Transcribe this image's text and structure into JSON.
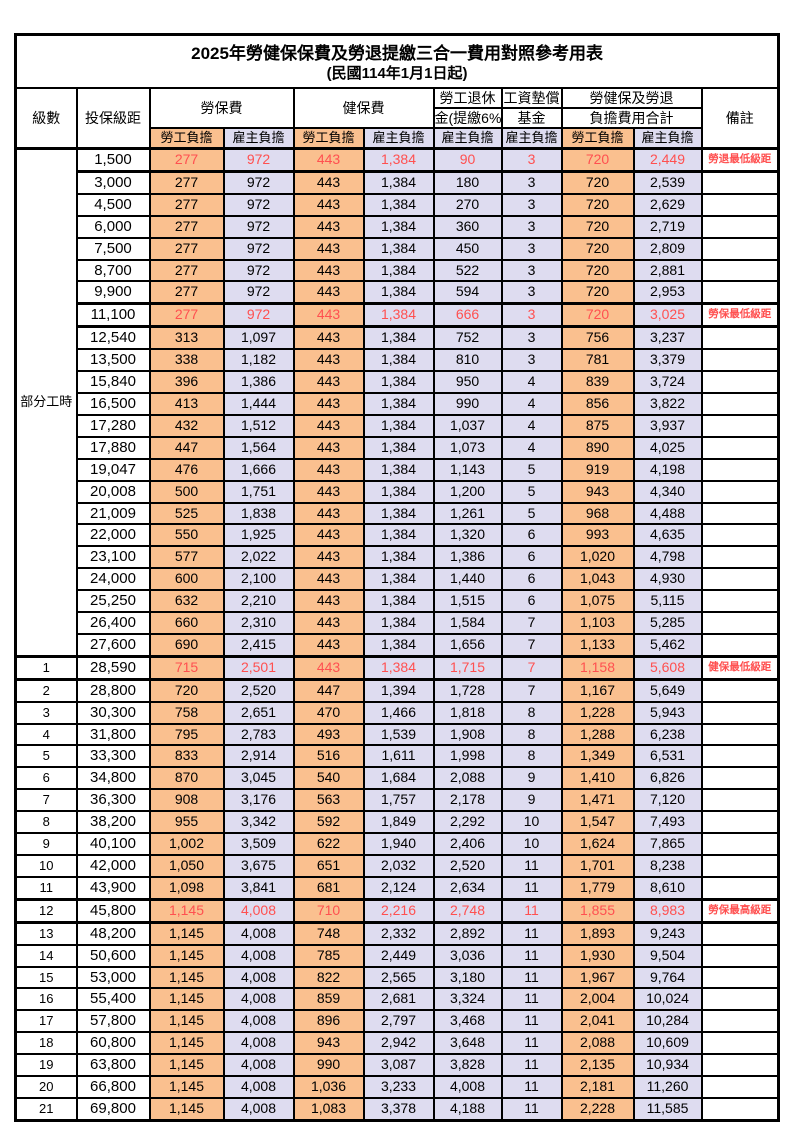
{
  "title": {
    "main": "2025年勞健保保費及勞退提繳三合一費用對照參考用表",
    "subtitle": "(民國114年1月1日起)"
  },
  "header": {
    "level": "級數",
    "bracket": "投保級距",
    "labor_group": "勞保費",
    "health_group": "健保費",
    "pension_line1": "勞工退休",
    "pension_line2": "金(提繳6%)",
    "wage_line1": "工資墊償",
    "wage_line2": "基金",
    "total_line1": "勞健保及勞退",
    "total_line2": "負擔費用合計",
    "remark": "備註",
    "sub_employee": "勞工負擔",
    "sub_employer": "雇主負擔"
  },
  "level_group": {
    "label": "部分工時",
    "span": 23
  },
  "colors": {
    "employee_bg": "#FAC08F",
    "employer_bg": "#DEDCF0",
    "highlight_text": "#FF5050",
    "border": "#000000"
  },
  "rows": [
    {
      "level": "",
      "bracket": "1,500",
      "values": [
        "277",
        "972",
        "443",
        "1,384",
        "90",
        "3",
        "720",
        "2,449"
      ],
      "remark": "勞退最低級距",
      "highlight": true
    },
    {
      "level": "",
      "bracket": "3,000",
      "values": [
        "277",
        "972",
        "443",
        "1,384",
        "180",
        "3",
        "720",
        "2,539"
      ],
      "remark": "",
      "highlight": false
    },
    {
      "level": "",
      "bracket": "4,500",
      "values": [
        "277",
        "972",
        "443",
        "1,384",
        "270",
        "3",
        "720",
        "2,629"
      ],
      "remark": "",
      "highlight": false
    },
    {
      "level": "",
      "bracket": "6,000",
      "values": [
        "277",
        "972",
        "443",
        "1,384",
        "360",
        "3",
        "720",
        "2,719"
      ],
      "remark": "",
      "highlight": false
    },
    {
      "level": "",
      "bracket": "7,500",
      "values": [
        "277",
        "972",
        "443",
        "1,384",
        "450",
        "3",
        "720",
        "2,809"
      ],
      "remark": "",
      "highlight": false
    },
    {
      "level": "",
      "bracket": "8,700",
      "values": [
        "277",
        "972",
        "443",
        "1,384",
        "522",
        "3",
        "720",
        "2,881"
      ],
      "remark": "",
      "highlight": false
    },
    {
      "level": "",
      "bracket": "9,900",
      "values": [
        "277",
        "972",
        "443",
        "1,384",
        "594",
        "3",
        "720",
        "2,953"
      ],
      "remark": "",
      "highlight": false
    },
    {
      "level": "",
      "bracket": "11,100",
      "values": [
        "277",
        "972",
        "443",
        "1,384",
        "666",
        "3",
        "720",
        "3,025"
      ],
      "remark": "勞保最低級距",
      "highlight": true
    },
    {
      "level": "",
      "bracket": "12,540",
      "values": [
        "313",
        "1,097",
        "443",
        "1,384",
        "752",
        "3",
        "756",
        "3,237"
      ],
      "remark": "",
      "highlight": false
    },
    {
      "level": "",
      "bracket": "13,500",
      "values": [
        "338",
        "1,182",
        "443",
        "1,384",
        "810",
        "3",
        "781",
        "3,379"
      ],
      "remark": "",
      "highlight": false
    },
    {
      "level": "",
      "bracket": "15,840",
      "values": [
        "396",
        "1,386",
        "443",
        "1,384",
        "950",
        "4",
        "839",
        "3,724"
      ],
      "remark": "",
      "highlight": false
    },
    {
      "level": "",
      "bracket": "16,500",
      "values": [
        "413",
        "1,444",
        "443",
        "1,384",
        "990",
        "4",
        "856",
        "3,822"
      ],
      "remark": "",
      "highlight": false
    },
    {
      "level": "",
      "bracket": "17,280",
      "values": [
        "432",
        "1,512",
        "443",
        "1,384",
        "1,037",
        "4",
        "875",
        "3,937"
      ],
      "remark": "",
      "highlight": false
    },
    {
      "level": "",
      "bracket": "17,880",
      "values": [
        "447",
        "1,564",
        "443",
        "1,384",
        "1,073",
        "4",
        "890",
        "4,025"
      ],
      "remark": "",
      "highlight": false
    },
    {
      "level": "",
      "bracket": "19,047",
      "values": [
        "476",
        "1,666",
        "443",
        "1,384",
        "1,143",
        "5",
        "919",
        "4,198"
      ],
      "remark": "",
      "highlight": false
    },
    {
      "level": "",
      "bracket": "20,008",
      "values": [
        "500",
        "1,751",
        "443",
        "1,384",
        "1,200",
        "5",
        "943",
        "4,340"
      ],
      "remark": "",
      "highlight": false
    },
    {
      "level": "",
      "bracket": "21,009",
      "values": [
        "525",
        "1,838",
        "443",
        "1,384",
        "1,261",
        "5",
        "968",
        "4,488"
      ],
      "remark": "",
      "highlight": false
    },
    {
      "level": "",
      "bracket": "22,000",
      "values": [
        "550",
        "1,925",
        "443",
        "1,384",
        "1,320",
        "6",
        "993",
        "4,635"
      ],
      "remark": "",
      "highlight": false
    },
    {
      "level": "",
      "bracket": "23,100",
      "values": [
        "577",
        "2,022",
        "443",
        "1,384",
        "1,386",
        "6",
        "1,020",
        "4,798"
      ],
      "remark": "",
      "highlight": false
    },
    {
      "level": "",
      "bracket": "24,000",
      "values": [
        "600",
        "2,100",
        "443",
        "1,384",
        "1,440",
        "6",
        "1,043",
        "4,930"
      ],
      "remark": "",
      "highlight": false
    },
    {
      "level": "",
      "bracket": "25,250",
      "values": [
        "632",
        "2,210",
        "443",
        "1,384",
        "1,515",
        "6",
        "1,075",
        "5,115"
      ],
      "remark": "",
      "highlight": false
    },
    {
      "level": "",
      "bracket": "26,400",
      "values": [
        "660",
        "2,310",
        "443",
        "1,384",
        "1,584",
        "7",
        "1,103",
        "5,285"
      ],
      "remark": "",
      "highlight": false
    },
    {
      "level": "",
      "bracket": "27,600",
      "values": [
        "690",
        "2,415",
        "443",
        "1,384",
        "1,656",
        "7",
        "1,133",
        "5,462"
      ],
      "remark": "",
      "highlight": false
    },
    {
      "level": "1",
      "bracket": "28,590",
      "values": [
        "715",
        "2,501",
        "443",
        "1,384",
        "1,715",
        "7",
        "1,158",
        "5,608"
      ],
      "remark": "健保最低級距",
      "highlight": true
    },
    {
      "level": "2",
      "bracket": "28,800",
      "values": [
        "720",
        "2,520",
        "447",
        "1,394",
        "1,728",
        "7",
        "1,167",
        "5,649"
      ],
      "remark": "",
      "highlight": false
    },
    {
      "level": "3",
      "bracket": "30,300",
      "values": [
        "758",
        "2,651",
        "470",
        "1,466",
        "1,818",
        "8",
        "1,228",
        "5,943"
      ],
      "remark": "",
      "highlight": false
    },
    {
      "level": "4",
      "bracket": "31,800",
      "values": [
        "795",
        "2,783",
        "493",
        "1,539",
        "1,908",
        "8",
        "1,288",
        "6,238"
      ],
      "remark": "",
      "highlight": false
    },
    {
      "level": "5",
      "bracket": "33,300",
      "values": [
        "833",
        "2,914",
        "516",
        "1,611",
        "1,998",
        "8",
        "1,349",
        "6,531"
      ],
      "remark": "",
      "highlight": false
    },
    {
      "level": "6",
      "bracket": "34,800",
      "values": [
        "870",
        "3,045",
        "540",
        "1,684",
        "2,088",
        "9",
        "1,410",
        "6,826"
      ],
      "remark": "",
      "highlight": false
    },
    {
      "level": "7",
      "bracket": "36,300",
      "values": [
        "908",
        "3,176",
        "563",
        "1,757",
        "2,178",
        "9",
        "1,471",
        "7,120"
      ],
      "remark": "",
      "highlight": false
    },
    {
      "level": "8",
      "bracket": "38,200",
      "values": [
        "955",
        "3,342",
        "592",
        "1,849",
        "2,292",
        "10",
        "1,547",
        "7,493"
      ],
      "remark": "",
      "highlight": false
    },
    {
      "level": "9",
      "bracket": "40,100",
      "values": [
        "1,002",
        "3,509",
        "622",
        "1,940",
        "2,406",
        "10",
        "1,624",
        "7,865"
      ],
      "remark": "",
      "highlight": false
    },
    {
      "level": "10",
      "bracket": "42,000",
      "values": [
        "1,050",
        "3,675",
        "651",
        "2,032",
        "2,520",
        "11",
        "1,701",
        "8,238"
      ],
      "remark": "",
      "highlight": false
    },
    {
      "level": "11",
      "bracket": "43,900",
      "values": [
        "1,098",
        "3,841",
        "681",
        "2,124",
        "2,634",
        "11",
        "1,779",
        "8,610"
      ],
      "remark": "",
      "highlight": false
    },
    {
      "level": "12",
      "bracket": "45,800",
      "values": [
        "1,145",
        "4,008",
        "710",
        "2,216",
        "2,748",
        "11",
        "1,855",
        "8,983"
      ],
      "remark": "勞保最高級距",
      "highlight": true
    },
    {
      "level": "13",
      "bracket": "48,200",
      "values": [
        "1,145",
        "4,008",
        "748",
        "2,332",
        "2,892",
        "11",
        "1,893",
        "9,243"
      ],
      "remark": "",
      "highlight": false
    },
    {
      "level": "14",
      "bracket": "50,600",
      "values": [
        "1,145",
        "4,008",
        "785",
        "2,449",
        "3,036",
        "11",
        "1,930",
        "9,504"
      ],
      "remark": "",
      "highlight": false
    },
    {
      "level": "15",
      "bracket": "53,000",
      "values": [
        "1,145",
        "4,008",
        "822",
        "2,565",
        "3,180",
        "11",
        "1,967",
        "9,764"
      ],
      "remark": "",
      "highlight": false
    },
    {
      "level": "16",
      "bracket": "55,400",
      "values": [
        "1,145",
        "4,008",
        "859",
        "2,681",
        "3,324",
        "11",
        "2,004",
        "10,024"
      ],
      "remark": "",
      "highlight": false
    },
    {
      "level": "17",
      "bracket": "57,800",
      "values": [
        "1,145",
        "4,008",
        "896",
        "2,797",
        "3,468",
        "11",
        "2,041",
        "10,284"
      ],
      "remark": "",
      "highlight": false
    },
    {
      "level": "18",
      "bracket": "60,800",
      "values": [
        "1,145",
        "4,008",
        "943",
        "2,942",
        "3,648",
        "11",
        "2,088",
        "10,609"
      ],
      "remark": "",
      "highlight": false
    },
    {
      "level": "19",
      "bracket": "63,800",
      "values": [
        "1,145",
        "4,008",
        "990",
        "3,087",
        "3,828",
        "11",
        "2,135",
        "10,934"
      ],
      "remark": "",
      "highlight": false
    },
    {
      "level": "20",
      "bracket": "66,800",
      "values": [
        "1,145",
        "4,008",
        "1,036",
        "3,233",
        "4,008",
        "11",
        "2,181",
        "11,260"
      ],
      "remark": "",
      "highlight": false
    },
    {
      "level": "21",
      "bracket": "69,800",
      "values": [
        "1,145",
        "4,008",
        "1,083",
        "3,378",
        "4,188",
        "11",
        "2,228",
        "11,585"
      ],
      "remark": "",
      "highlight": false
    }
  ]
}
